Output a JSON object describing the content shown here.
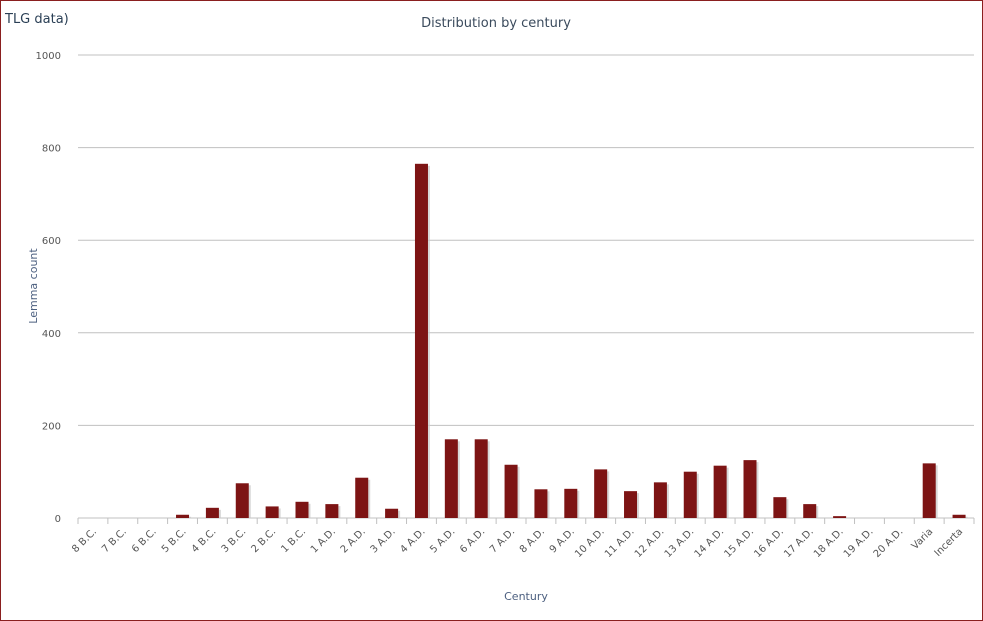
{
  "corner_label": "TLG data)",
  "colors": {
    "bar": "#7d1414",
    "bar_shadow": "#c8c8c8",
    "grid": "#c0c0c0",
    "frame": "#8a1f1f"
  },
  "chart_data": {
    "type": "bar",
    "title": "Distribution by century",
    "xlabel": "Century",
    "ylabel": "Lemma count",
    "ylim": [
      0,
      1000
    ],
    "yticks": [
      0,
      200,
      400,
      600,
      800,
      1000
    ],
    "grid": true,
    "legend": "none",
    "categories": [
      "8 B.C.",
      "7 B.C.",
      "6 B.C.",
      "5 B.C.",
      "4 B.C.",
      "3 B.C.",
      "2 B.C.",
      "1 B.C.",
      "1 A.D.",
      "2 A.D.",
      "3 A.D.",
      "4 A.D.",
      "5 A.D.",
      "6 A.D.",
      "7 A.D.",
      "8 A.D.",
      "9 A.D.",
      "10 A.D.",
      "11 A.D.",
      "12 A.D.",
      "13 A.D.",
      "14 A.D.",
      "15 A.D.",
      "16 A.D.",
      "17 A.D.",
      "18 A.D.",
      "19 A.D.",
      "20 A.D.",
      "Varia",
      "Incerta"
    ],
    "values": [
      0,
      0,
      0,
      7,
      22,
      75,
      25,
      35,
      30,
      87,
      20,
      765,
      170,
      170,
      115,
      62,
      63,
      105,
      58,
      77,
      100,
      113,
      125,
      45,
      30,
      4,
      0,
      0,
      118,
      7
    ]
  }
}
